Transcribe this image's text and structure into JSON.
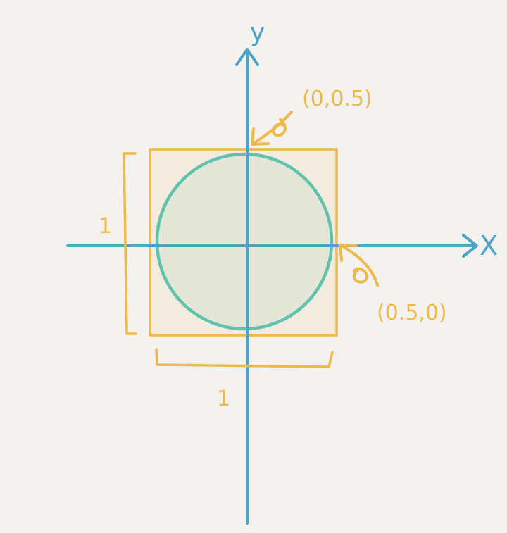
{
  "diagram": {
    "axes": {
      "x_label": "X",
      "y_label": "y"
    },
    "annotations": {
      "top_point_label": "(0,0.5)",
      "right_point_label": "(0.5,0)",
      "vertical_dimension_label": "1",
      "horizontal_dimension_label": "1"
    },
    "colors": {
      "background": "#f4f2ef",
      "axis": "#4fa3c6",
      "square": "#efb84a",
      "square_fill": "#f3ebdd",
      "circle": "#5fc3ad",
      "circle_fill": "#e4e6d7",
      "annotation": "#efb84a"
    }
  }
}
